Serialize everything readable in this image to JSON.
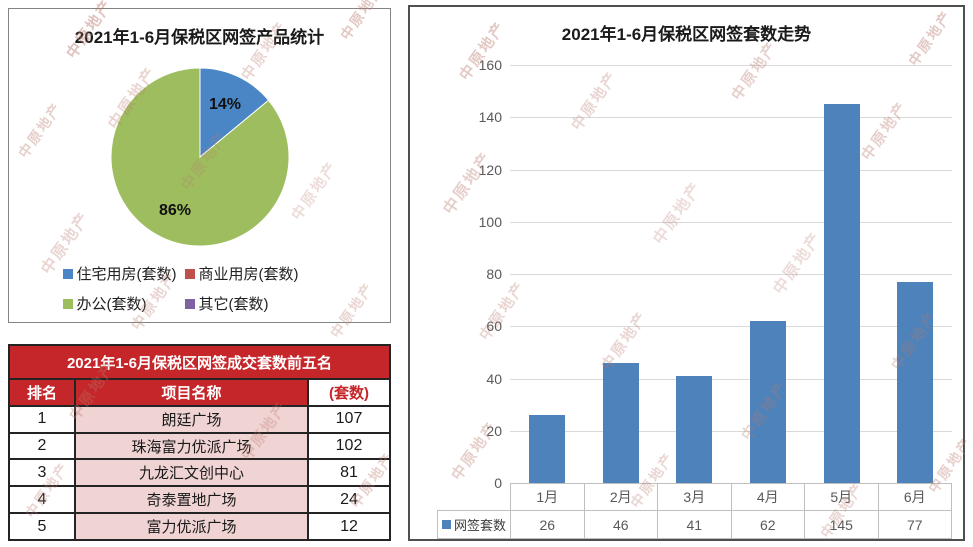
{
  "watermark": {
    "text": "中原地产",
    "color": "#b97a6e"
  },
  "chart_data": [
    {
      "type": "pie",
      "title": "2021年1-6月保税区网签产品统计",
      "series": [
        {
          "name": "住宅用房(套数)",
          "value": 14,
          "color": "#4a86c6",
          "pct_label": "14%"
        },
        {
          "name": "商业用房(套数)",
          "value": 0,
          "color": "#c0504d",
          "pct_label": ""
        },
        {
          "name": "办公(套数)",
          "value": 86,
          "color": "#9dbd5e",
          "pct_label": "86%"
        },
        {
          "name": "其它(套数)",
          "value": 0,
          "color": "#8064a2",
          "pct_label": ""
        }
      ],
      "legend_position": "bottom"
    },
    {
      "type": "bar",
      "title": "2021年1-6月保税区网签套数走势",
      "categories": [
        "1月",
        "2月",
        "3月",
        "4月",
        "5月",
        "6月"
      ],
      "series": [
        {
          "name": "网签套数",
          "values": [
            26,
            46,
            41,
            62,
            145,
            77
          ],
          "color": "#4d82ba"
        }
      ],
      "ylim": [
        0,
        160
      ],
      "ytick": 20,
      "yticks": [
        0,
        20,
        40,
        60,
        80,
        100,
        120,
        140,
        160
      ],
      "grid": true,
      "data_table": true,
      "legend_position": "bottom-left"
    },
    {
      "type": "table",
      "title": "2021年1-6月保税区网签成交套数前五名",
      "columns": [
        "排名",
        "项目名称",
        "(套数)"
      ],
      "rows": [
        [
          "1",
          "朗廷广场",
          "107"
        ],
        [
          "2",
          "珠海富力优派广场",
          "102"
        ],
        [
          "3",
          "九龙汇文创中心",
          "81"
        ],
        [
          "4",
          "奇泰置地广场",
          "24"
        ],
        [
          "5",
          "富力优派广场",
          "12"
        ]
      ],
      "colors": {
        "header_bg": "#c4262a",
        "header_text": "#ffffff",
        "name_cell_bg": "#f0d3d3",
        "count_header_text": "#c4262a"
      }
    }
  ]
}
